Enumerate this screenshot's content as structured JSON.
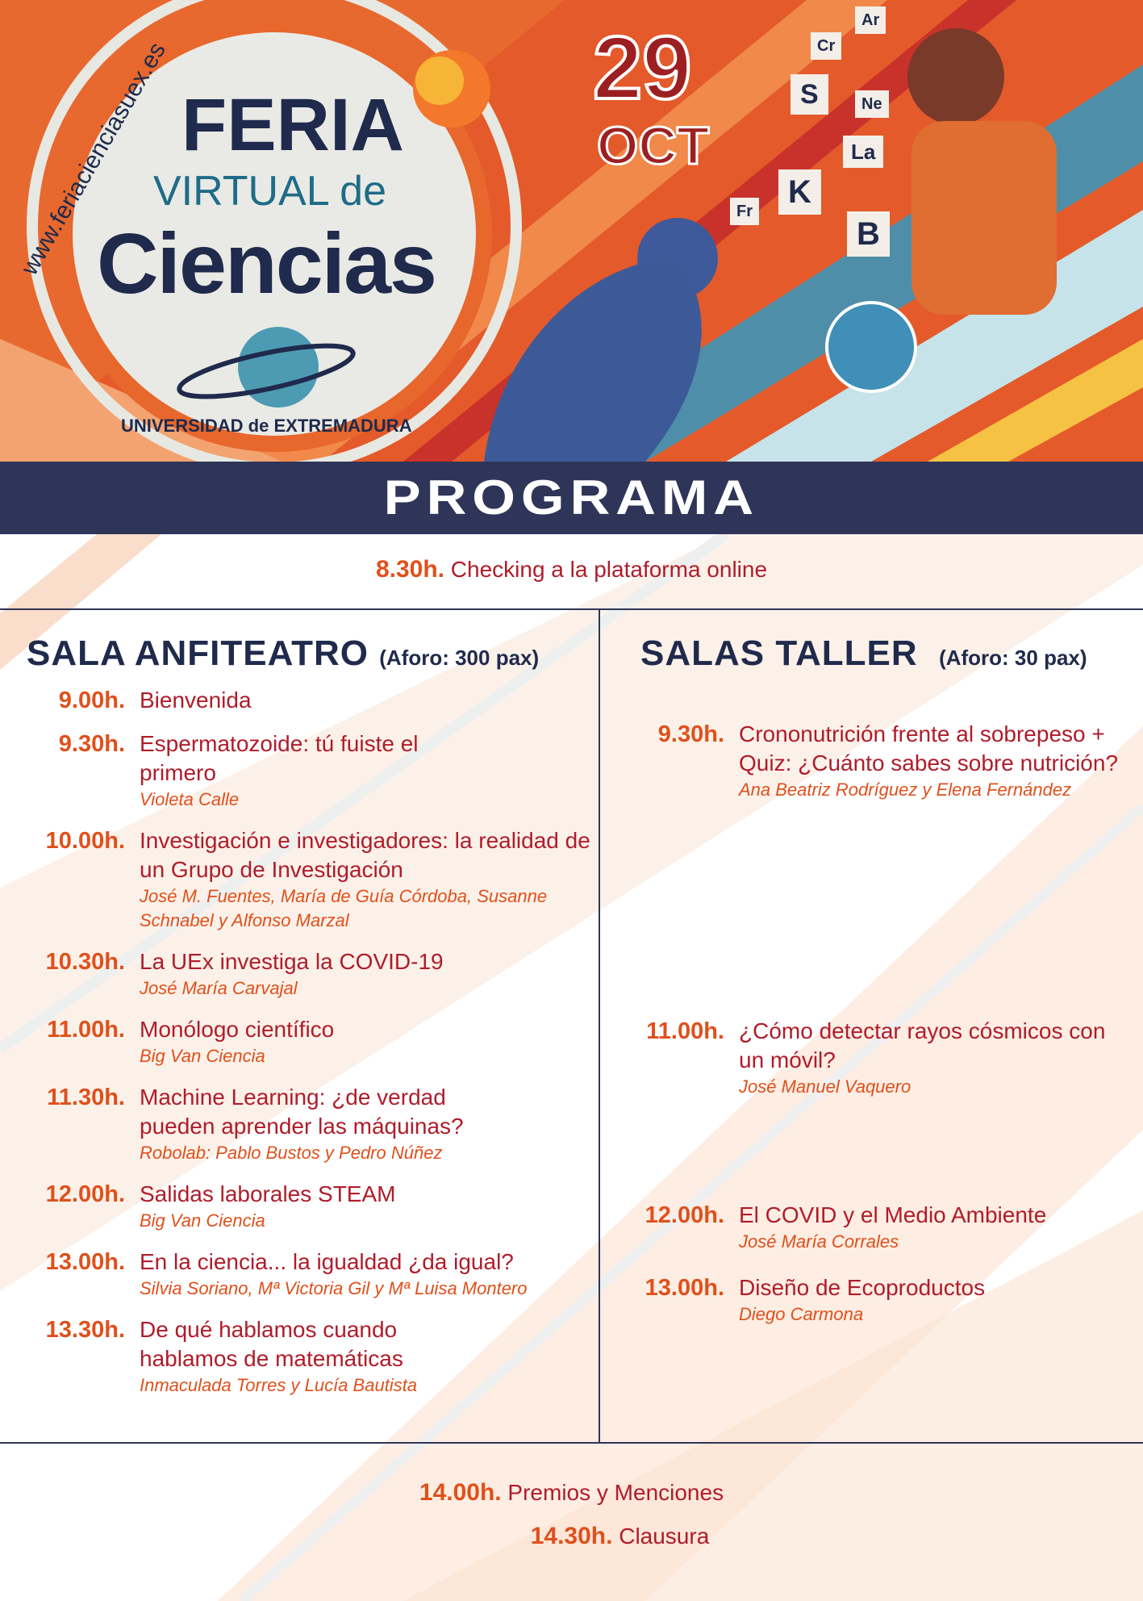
{
  "header": {
    "website": "www.feriacienciasuex.es",
    "logo_line1": "FERIA",
    "logo_line2": "VIRTUAL de",
    "logo_line3": "Ciencias",
    "logo_arc": "UNIVERSIDAD de EXTREMADURA",
    "date_day": "29",
    "date_month": "OCT",
    "element_tiles": [
      "Ar",
      "Cr",
      "S",
      "Ne",
      "La",
      "Fr",
      "K",
      "B"
    ]
  },
  "banner": {
    "title": "PROGRAMA"
  },
  "checkin": {
    "time": "8.30h.",
    "title": "Checking a la plataforma online"
  },
  "left": {
    "heading": "SALA ANFITEATRO",
    "capacity": "(Aforo: 300 pax)",
    "items": [
      {
        "time": "9.00h.",
        "title": "Bienvenida",
        "speaker": ""
      },
      {
        "time": "9.30h.",
        "title": "Espermatozoide: tú fuiste el primero",
        "speaker": "Violeta Calle"
      },
      {
        "time": "10.00h.",
        "title": "Investigación e investigadores: la realidad de un Grupo de Investigación",
        "speaker": "José M. Fuentes, María de Guía Córdoba, Susanne Schnabel y Alfonso Marzal"
      },
      {
        "time": "10.30h.",
        "title": "La UEx investiga la COVID-19",
        "speaker": "José María Carvajal"
      },
      {
        "time": "11.00h.",
        "title": "Monólogo científico",
        "speaker": "Big Van Ciencia"
      },
      {
        "time": "11.30h.",
        "title": "Machine Learning: ¿de verdad pueden aprender las máquinas?",
        "speaker": "Robolab: Pablo Bustos y Pedro Núñez"
      },
      {
        "time": "12.00h.",
        "title": "Salidas laborales STEAM",
        "speaker": "Big Van Ciencia"
      },
      {
        "time": "13.00h.",
        "title": "En la ciencia... la igualdad ¿da igual?",
        "speaker": "Silvia Soriano, Mª Victoria Gil y Mª Luisa Montero"
      },
      {
        "time": "13.30h.",
        "title": "De qué hablamos cuando hablamos de matemáticas",
        "speaker": "Inmaculada Torres y Lucía Bautista"
      }
    ]
  },
  "right": {
    "heading": "SALAS TALLER",
    "capacity": "(Aforo: 30 pax)",
    "items": [
      {
        "time": "9.30h.",
        "title": "Crononutrición frente al sobrepeso + Quiz: ¿Cuánto sabes sobre nutrición?",
        "speaker": "Ana Beatriz Rodríguez y Elena Fernández"
      },
      {
        "time": "11.00h.",
        "title": "¿Cómo detectar rayos cósmicos con un móvil?",
        "speaker": "José Manuel Vaquero"
      },
      {
        "time": "12.00h.",
        "title": "El COVID y el Medio Ambiente",
        "speaker": "José María Corrales"
      },
      {
        "time": "13.00h.",
        "title": "Diseño de Ecoproductos",
        "speaker": "Diego Carmona"
      }
    ]
  },
  "closing": [
    {
      "time": "14.00h.",
      "title": "Premios y Menciones"
    },
    {
      "time": "14.30h.",
      "title": "Clausura"
    }
  ],
  "colors": {
    "navy": "#2f3558",
    "time_orange": "#e0501b",
    "title_red": "#b01c2a",
    "heading_navy": "#1f2a4c"
  }
}
